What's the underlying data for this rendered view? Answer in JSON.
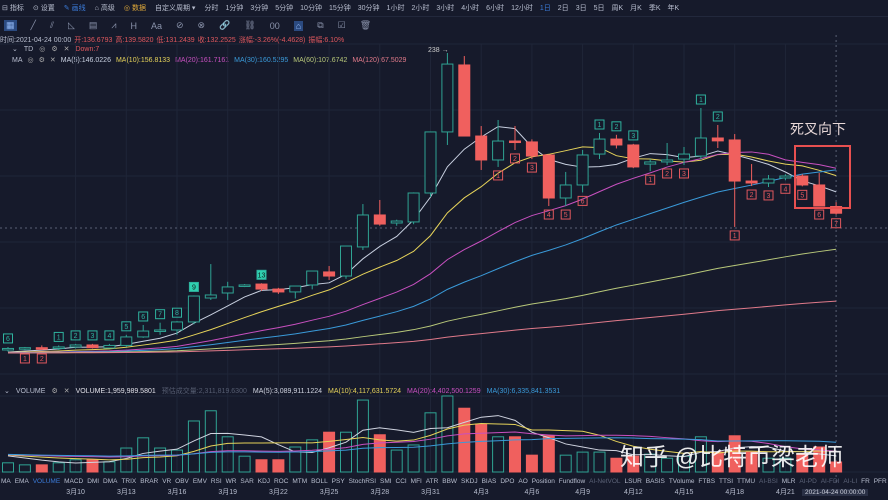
{
  "topbar": {
    "indicator": "指标",
    "settings": "设置",
    "draw": "画线",
    "advanced": "高级",
    "data": "数据",
    "custom_period": "自定义周期 ▾",
    "periods": [
      "分时",
      "1分钟",
      "3分钟",
      "5分钟",
      "10分钟",
      "15分钟",
      "30分钟",
      "1小时",
      "2小时",
      "3小时",
      "4小时",
      "6小时",
      "12小时",
      "1日",
      "2日",
      "3日",
      "5日",
      "周K",
      "月K",
      "季K",
      "年K"
    ],
    "active_period": "1日"
  },
  "tools": [
    "▦",
    "╱",
    "⫽",
    "◺",
    "▤",
    "⩘",
    "H",
    "Aa",
    "⊘",
    "⊗",
    "🔗",
    "⛓",
    "00",
    "⌂",
    "⧉",
    "☑",
    "🗑"
  ],
  "info": {
    "time": "时间:2021-04-24 00:00",
    "open": "开:136.6793",
    "high": "高:139.5820",
    "low": "低:131.2439",
    "close": "收:132.2525",
    "change": "涨幅:-3.26%(-4.4628)",
    "amplitude": "振幅:6.10%"
  },
  "td": {
    "name": "TD",
    "value": "Down:7"
  },
  "ma": {
    "name": "MA",
    "items": [
      {
        "label": "MA(5):146.0226",
        "color": "#c8d0e0"
      },
      {
        "label": "MA(10):156.8133",
        "color": "#e6d35a"
      },
      {
        "label": "MA(20):161.7161",
        "color": "#c850c0"
      },
      {
        "label": "MA(30):160.5295",
        "color": "#3a9ad9"
      },
      {
        "label": "MA(60):107.6742",
        "color": "#b8c87a"
      },
      {
        "label": "MA(120):67.5029",
        "color": "#e07a8a"
      }
    ]
  },
  "high_label": "238 →",
  "annotation": "死叉向下",
  "watermark": "知乎 @比特币梁老师",
  "volume": {
    "name": "VOLUME",
    "value": "VOLUME:1,959,989.5801",
    "estimate": "预估成交量:2,311,819.6300",
    "items": [
      {
        "label": "MA(5):3,089,911.1224",
        "color": "#d0d4e0"
      },
      {
        "label": "MA(10):4,117,631.5724",
        "color": "#e6d35a"
      },
      {
        "label": "MA(20):4,402,500.1259",
        "color": "#c850c0"
      },
      {
        "label": "MA(30):6,335,841.3531",
        "color": "#3a9ad9"
      }
    ]
  },
  "tabs": [
    "MA",
    "EMA",
    "VOLUME",
    "MACD",
    "DMI",
    "DMA",
    "TRIX",
    "BRAR",
    "VR",
    "OBV",
    "EMV",
    "RSI",
    "WR",
    "SAR",
    "KDJ",
    "ROC",
    "MTM",
    "BOLL",
    "PSY",
    "StochRSI",
    "SMI",
    "CCI",
    "MFI",
    "ATR",
    "BBW",
    "SKDJ",
    "BIAS",
    "DPO",
    "AO",
    "Position",
    "Fundflow",
    "AI-NetVOL",
    "LSUR",
    "BASIS",
    "TVolume",
    "FTBS",
    "TTSI",
    "TTMU",
    "AI-BSI",
    "MLR",
    "AI-PD",
    "AI-FDI",
    "AI-LI",
    "FR",
    "PFR"
  ],
  "active_tab": "VOLUME",
  "dates": [
    {
      "label": "3月10",
      "i": 4
    },
    {
      "label": "3月13",
      "i": 7
    },
    {
      "label": "3月16",
      "i": 10
    },
    {
      "label": "3月19",
      "i": 13
    },
    {
      "label": "3月22",
      "i": 16
    },
    {
      "label": "3月25",
      "i": 19
    },
    {
      "label": "3月28",
      "i": 22
    },
    {
      "label": "3月31",
      "i": 25
    },
    {
      "label": "4月3",
      "i": 28
    },
    {
      "label": "4月6",
      "i": 31
    },
    {
      "label": "4月9",
      "i": 34
    },
    {
      "label": "4月12",
      "i": 37
    },
    {
      "label": "4月15",
      "i": 40
    },
    {
      "label": "4月18",
      "i": 43
    },
    {
      "label": "4月21",
      "i": 46
    }
  ],
  "current_date": "2021-04-24 00:00:00",
  "colors": {
    "up": "#2fa393",
    "down": "#f0605e"
  },
  "chart_data": {
    "type": "candlestick",
    "ohlc": [
      [
        42,
        44,
        41,
        43
      ],
      [
        43,
        44,
        42,
        43.5
      ],
      [
        43.5,
        45,
        42,
        43
      ],
      [
        43,
        45,
        42,
        44
      ],
      [
        44,
        46,
        43,
        45.3
      ],
      [
        45.3,
        46,
        43,
        43.5
      ],
      [
        43.3,
        46,
        43,
        45
      ],
      [
        45,
        52,
        44,
        50.6
      ],
      [
        50.6,
        58.5,
        50,
        54.5
      ],
      [
        54.5,
        60,
        52,
        55.2
      ],
      [
        55.2,
        61,
        52,
        60.5
      ],
      [
        60.5,
        78,
        59,
        77.6
      ],
      [
        76.3,
        98.7,
        75,
        78.3
      ],
      [
        79.6,
        87,
        75,
        83.6
      ],
      [
        84.2,
        85.5,
        83.5,
        84.9
      ],
      [
        85.5,
        86,
        81,
        82.2
      ],
      [
        82.2,
        83,
        79,
        80.3
      ],
      [
        80.3,
        84.2,
        76,
        84.2
      ],
      [
        84.9,
        94.1,
        82,
        94.1
      ],
      [
        93.5,
        97.4,
        88.2,
        90.8
      ],
      [
        90.8,
        110.6,
        89,
        110.6
      ],
      [
        110,
        138.3,
        108,
        131.1
      ],
      [
        131.1,
        141,
        124,
        125.1
      ],
      [
        125.8,
        128,
        124,
        127.1
      ],
      [
        126.5,
        146,
        125,
        145.6
      ],
      [
        145.6,
        186,
        143,
        185.9
      ],
      [
        185.9,
        238,
        177.3,
        230.7
      ],
      [
        230.1,
        236,
        183,
        183.2
      ],
      [
        183.2,
        189.8,
        160.8,
        167.4
      ],
      [
        167.4,
        193.8,
        162.8,
        179.9
      ],
      [
        179.9,
        189.8,
        174,
        179.3
      ],
      [
        179.3,
        181,
        168,
        170
      ],
      [
        170.7,
        171,
        137,
        142.3
      ],
      [
        142.3,
        159.5,
        137,
        150.9
      ],
      [
        150.9,
        174,
        146,
        170.7
      ],
      [
        171.3,
        185.2,
        168,
        181.2
      ],
      [
        181.2,
        184,
        175,
        177.3
      ],
      [
        177.3,
        178,
        162,
        162.8
      ],
      [
        164.7,
        168,
        160,
        166.1
      ],
      [
        166.1,
        178.6,
        164.1,
        167.4
      ],
      [
        168,
        176,
        164.1,
        171.3
      ],
      [
        170,
        201.7,
        168,
        181.9
      ],
      [
        181.9,
        190.5,
        175.3,
        180
      ],
      [
        180.6,
        184.5,
        123.2,
        153.5
      ],
      [
        153.5,
        164.7,
        150.2,
        152.2
      ],
      [
        152.2,
        157.5,
        149.6,
        154.8
      ],
      [
        155.5,
        158,
        154,
        156.8
      ],
      [
        156.8,
        158,
        150,
        150.9
      ],
      [
        150.9,
        158.8,
        137,
        137
      ],
      [
        136.68,
        139.58,
        131.24,
        132.25
      ]
    ],
    "volume_billions": [
      1.8,
      1.4,
      1.4,
      1.8,
      2.4,
      2.4,
      2.0,
      4.7,
      6.7,
      4.7,
      4.3,
      10,
      12,
      6.9,
      3.1,
      2.4,
      2.4,
      4.9,
      6.3,
      7.8,
      7.8,
      14.1,
      7.3,
      4.3,
      5.3,
      11.6,
      14.9,
      12.5,
      9.4,
      6.9,
      6.9,
      3.3,
      7.1,
      3.3,
      3.9,
      3.9,
      2.7,
      3.1,
      3.5,
      2.7,
      3.1,
      6.9,
      3.9,
      7.1,
      3.9,
      2.7,
      2.7,
      3.5,
      4.9,
      1.96
    ],
    "ma_periods": [
      5,
      10,
      20,
      30,
      60,
      120
    ],
    "td_marks": [
      [
        0,
        "6",
        "up"
      ],
      [
        1,
        "1",
        "down"
      ],
      [
        2,
        "2",
        "down"
      ],
      [
        3,
        "1",
        "up"
      ],
      [
        4,
        "2",
        "up"
      ],
      [
        5,
        "3",
        "up"
      ],
      [
        6,
        "4",
        "up"
      ],
      [
        7,
        "5",
        "up"
      ],
      [
        8,
        "6",
        "up"
      ],
      [
        9,
        "7",
        "up"
      ],
      [
        10,
        "8",
        "up"
      ],
      [
        11,
        "9",
        "upf"
      ],
      [
        15,
        "13",
        "upf"
      ],
      [
        29,
        "1",
        "down"
      ],
      [
        30,
        "2",
        "down"
      ],
      [
        31,
        "3",
        "down"
      ],
      [
        32,
        "4",
        "down"
      ],
      [
        33,
        "5",
        "down"
      ],
      [
        34,
        "6",
        "down"
      ],
      [
        35,
        "1",
        "up"
      ],
      [
        36,
        "2",
        "up"
      ],
      [
        37,
        "3",
        "up"
      ],
      [
        38,
        "1",
        "down"
      ],
      [
        39,
        "2",
        "down"
      ],
      [
        40,
        "3",
        "down"
      ],
      [
        41,
        "1",
        "up"
      ],
      [
        42,
        "2",
        "up"
      ],
      [
        43,
        "1",
        "down"
      ],
      [
        44,
        "2",
        "down"
      ],
      [
        45,
        "3",
        "down"
      ],
      [
        46,
        "4",
        "down"
      ],
      [
        47,
        "5",
        "down"
      ],
      [
        48,
        "6",
        "down"
      ],
      [
        49,
        "7",
        "down"
      ]
    ],
    "price_max": 238,
    "price_min": 40
  }
}
